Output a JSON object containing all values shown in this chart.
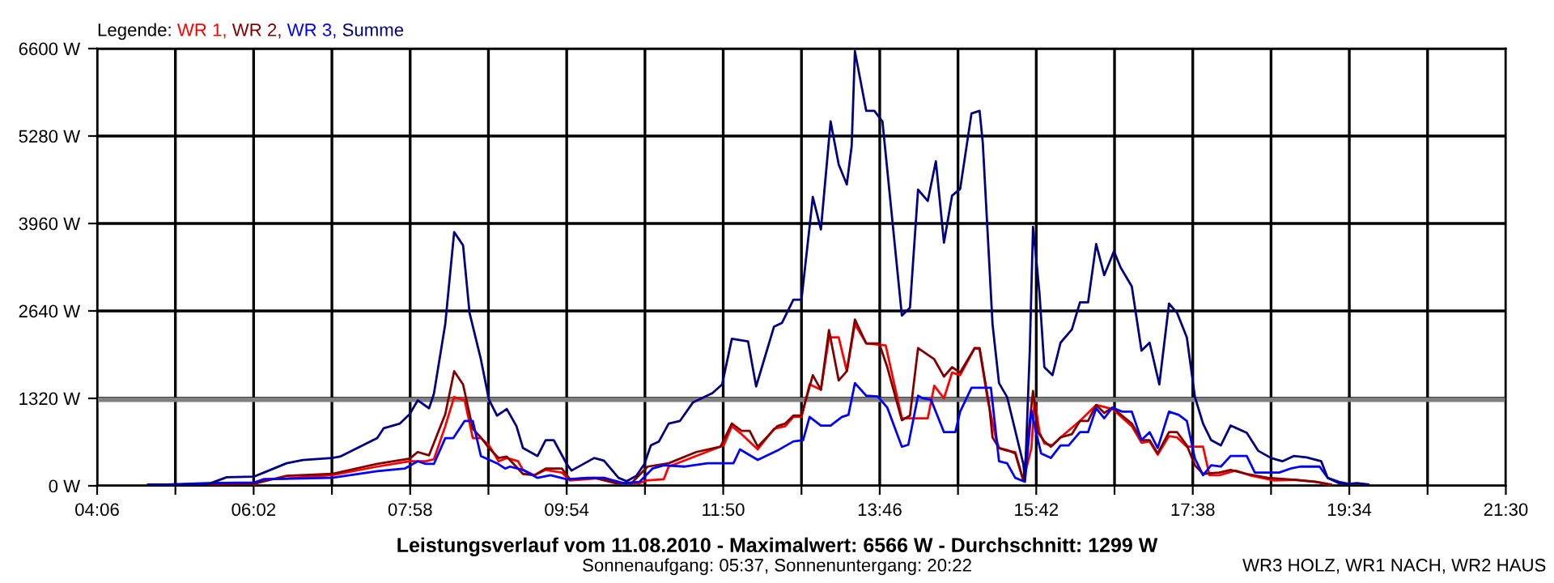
{
  "chart_data": {
    "type": "line",
    "title": "Leistungsverlauf vom 11.08.2010 - Maximalwert: 6566 W - Durchschnitt: 1299 W",
    "subtitle": "Sonnenaufgang: 05:37, Sonnenuntergang: 20:22",
    "legend_title": "Legende:",
    "annotations": [
      "WR3 HOLZ, WR1 NACH, WR2 HAUS"
    ],
    "legend": "top left",
    "grid": true,
    "marker": "none",
    "line_style": "solid",
    "xlim": [
      4.1,
      21.5
    ],
    "ylim": [
      0,
      6600
    ],
    "xticks": [
      {
        "value": 4.1,
        "label": "04:06"
      },
      {
        "value": 5.0667,
        "label": null
      },
      {
        "value": 6.0333,
        "label": "06:02"
      },
      {
        "value": 7.0,
        "label": null
      },
      {
        "value": 7.9667,
        "label": "07:58"
      },
      {
        "value": 8.9333,
        "label": null
      },
      {
        "value": 9.9,
        "label": "09:54"
      },
      {
        "value": 10.8667,
        "label": null
      },
      {
        "value": 11.8333,
        "label": "11:50"
      },
      {
        "value": 12.8,
        "label": null
      },
      {
        "value": 13.7667,
        "label": "13:46"
      },
      {
        "value": 14.7333,
        "label": null
      },
      {
        "value": 15.7,
        "label": "15:42"
      },
      {
        "value": 16.6667,
        "label": null
      },
      {
        "value": 17.6333,
        "label": "17:38"
      },
      {
        "value": 18.6,
        "label": null
      },
      {
        "value": 19.5667,
        "label": "19:34"
      },
      {
        "value": 20.5333,
        "label": null
      },
      {
        "value": 21.5,
        "label": "21:30"
      }
    ],
    "yticks": [
      {
        "value": 0,
        "label": "0 W"
      },
      {
        "value": 1320,
        "label": "1320 W"
      },
      {
        "value": 2640,
        "label": "2640 W"
      },
      {
        "value": 3960,
        "label": "3960 W"
      },
      {
        "value": 5280,
        "label": "5280 W"
      },
      {
        "value": 6600,
        "label": "6600 W"
      }
    ],
    "ref_lines": [
      {
        "axis": "y",
        "value": 1299,
        "label": null,
        "color": "#808080"
      }
    ],
    "series": [
      {
        "name": "WR 1,",
        "color": "#ff0000",
        "x": [
          6.04,
          6.16,
          6.44,
          6.64,
          7.0,
          7.56,
          7.96,
          8.16,
          8.26,
          8.4,
          8.51,
          8.64,
          8.74,
          8.84,
          8.94,
          9.06,
          9.16,
          9.3,
          9.36,
          9.5,
          9.64,
          9.84,
          9.94,
          10.36,
          10.54,
          10.8,
          10.88,
          11.1,
          11.16,
          11.84,
          11.94,
          12.06,
          12.26,
          12.46,
          12.6,
          12.7,
          12.8,
          12.9,
          13.04,
          13.14,
          13.26,
          13.36,
          13.46,
          13.6,
          13.84,
          14.04,
          14.36,
          14.44,
          14.56,
          14.66,
          14.76,
          14.94,
          15.0,
          15.1,
          15.2,
          15.24,
          15.34,
          15.44,
          15.54,
          15.64,
          15.68,
          15.74,
          15.8,
          15.9,
          16.0,
          16.24,
          16.44,
          16.64,
          16.88,
          17.0,
          17.1,
          17.2,
          17.34,
          17.44,
          17.56,
          17.76,
          17.84,
          17.96,
          18.16,
          18.36,
          18.64,
          18.9,
          19.16,
          19.34
        ],
        "values": [
          20,
          100,
          110,
          130,
          160,
          290,
          370,
          370,
          400,
          900,
          1340,
          1290,
          720,
          720,
          610,
          370,
          420,
          370,
          240,
          160,
          240,
          200,
          80,
          120,
          40,
          40,
          80,
          100,
          290,
          610,
          900,
          780,
          550,
          860,
          900,
          1040,
          1040,
          1530,
          1450,
          2240,
          2240,
          1730,
          2440,
          2150,
          2120,
          1020,
          1020,
          1510,
          1320,
          1710,
          1670,
          2080,
          2060,
          1300,
          730,
          570,
          530,
          510,
          80,
          570,
          1300,
          810,
          640,
          610,
          730,
          980,
          1220,
          1160,
          900,
          650,
          670,
          470,
          750,
          730,
          590,
          590,
          160,
          160,
          230,
          150,
          80,
          90,
          60,
          10
        ]
      },
      {
        "name": "WR 2,",
        "color": "#800000",
        "x": [
          5.46,
          6.04,
          6.44,
          7.0,
          7.56,
          7.96,
          8.06,
          8.2,
          8.4,
          8.51,
          8.62,
          8.74,
          8.84,
          8.94,
          9.06,
          9.16,
          9.36,
          9.5,
          9.64,
          9.84,
          9.94,
          10.24,
          10.5,
          10.7,
          10.9,
          11.16,
          11.5,
          11.8,
          11.94,
          12.06,
          12.16,
          12.26,
          12.5,
          12.6,
          12.7,
          12.8,
          12.94,
          13.04,
          13.14,
          13.26,
          13.36,
          13.46,
          13.6,
          13.76,
          13.86,
          14.04,
          14.14,
          14.24,
          14.44,
          14.56,
          14.66,
          14.76,
          14.94,
          15.0,
          15.12,
          15.16,
          15.24,
          15.34,
          15.44,
          15.54,
          15.66,
          15.72,
          15.8,
          15.88,
          16.0,
          16.14,
          16.24,
          16.34,
          16.44,
          16.54,
          16.64,
          16.76,
          16.88,
          17.0,
          17.1,
          17.2,
          17.34,
          17.44,
          17.56,
          17.66,
          17.76,
          17.96,
          18.1,
          18.3,
          18.56,
          18.9,
          19.16,
          19.34
        ],
        "values": [
          20,
          30,
          150,
          180,
          330,
          410,
          510,
          460,
          1080,
          1730,
          1530,
          860,
          730,
          570,
          420,
          440,
          180,
          160,
          260,
          260,
          100,
          120,
          40,
          40,
          290,
          340,
          510,
          590,
          940,
          830,
          830,
          590,
          900,
          940,
          1060,
          1060,
          1670,
          1450,
          2350,
          1590,
          1730,
          2510,
          2150,
          2150,
          1790,
          990,
          1060,
          2080,
          1910,
          1650,
          1790,
          1710,
          2080,
          2080,
          1200,
          730,
          570,
          540,
          490,
          80,
          1430,
          810,
          670,
          590,
          730,
          780,
          980,
          980,
          1220,
          1100,
          1180,
          1060,
          940,
          690,
          690,
          490,
          810,
          810,
          610,
          310,
          180,
          200,
          240,
          180,
          120,
          90,
          60,
          20
        ]
      },
      {
        "name": "WR 3,",
        "color": "#0000ff",
        "x": [
          4.73,
          5.46,
          6.04,
          6.16,
          7.0,
          7.56,
          7.9,
          8.06,
          8.16,
          8.26,
          8.4,
          8.5,
          8.64,
          8.74,
          8.84,
          9.04,
          9.14,
          9.2,
          9.36,
          9.54,
          9.7,
          9.9,
          10.16,
          10.36,
          10.6,
          10.8,
          10.96,
          11.1,
          11.36,
          11.64,
          11.96,
          12.04,
          12.26,
          12.5,
          12.7,
          12.82,
          12.9,
          13.04,
          13.16,
          13.3,
          13.38,
          13.46,
          13.6,
          13.74,
          13.86,
          14.04,
          14.12,
          14.24,
          14.3,
          14.4,
          14.56,
          14.7,
          14.76,
          14.9,
          15.1,
          15.14,
          15.24,
          15.34,
          15.44,
          15.56,
          15.64,
          15.68,
          15.76,
          15.88,
          16.0,
          16.1,
          16.24,
          16.34,
          16.44,
          16.54,
          16.64,
          16.76,
          16.88,
          17.0,
          17.1,
          17.2,
          17.34,
          17.46,
          17.56,
          17.66,
          17.76,
          17.86,
          17.98,
          18.1,
          18.3,
          18.4,
          18.56,
          18.7,
          18.84,
          18.96,
          19.2,
          19.3,
          19.44,
          19.56
        ],
        "values": [
          10,
          40,
          50,
          100,
          120,
          220,
          260,
          370,
          330,
          330,
          720,
          720,
          980,
          980,
          450,
          340,
          260,
          290,
          240,
          120,
          160,
          100,
          120,
          120,
          40,
          60,
          260,
          310,
          290,
          340,
          340,
          550,
          390,
          530,
          670,
          690,
          1040,
          910,
          910,
          1040,
          1070,
          1550,
          1360,
          1350,
          1180,
          590,
          620,
          1360,
          1320,
          1300,
          810,
          810,
          1120,
          1480,
          1480,
          1480,
          370,
          340,
          120,
          60,
          1140,
          900,
          490,
          420,
          610,
          610,
          810,
          810,
          1170,
          1020,
          1180,
          1120,
          1120,
          690,
          810,
          570,
          1120,
          1070,
          980,
          410,
          160,
          310,
          290,
          450,
          450,
          200,
          200,
          200,
          260,
          290,
          290,
          120,
          60,
          30
        ]
      },
      {
        "name": "Summe",
        "color": "#000080",
        "x": [
          4.73,
          5.46,
          5.7,
          6.04,
          6.16,
          6.44,
          6.64,
          7.0,
          7.1,
          7.56,
          7.64,
          7.84,
          7.96,
          8.06,
          8.2,
          8.26,
          8.4,
          8.51,
          8.62,
          8.7,
          8.84,
          8.94,
          9.04,
          9.16,
          9.28,
          9.36,
          9.54,
          9.64,
          9.74,
          9.9,
          9.96,
          10.24,
          10.36,
          10.54,
          10.64,
          10.76,
          10.86,
          10.94,
          11.04,
          11.16,
          11.3,
          11.46,
          11.6,
          11.7,
          11.82,
          11.94,
          12.14,
          12.24,
          12.46,
          12.56,
          12.7,
          12.8,
          12.9,
          12.94,
          13.04,
          13.16,
          13.26,
          13.36,
          13.42,
          13.46,
          13.6,
          13.7,
          13.8,
          14.04,
          14.14,
          14.24,
          14.36,
          14.46,
          14.56,
          14.66,
          14.76,
          14.9,
          15.0,
          15.04,
          15.16,
          15.24,
          15.34,
          15.54,
          15.56,
          15.62,
          15.66,
          15.7,
          15.74,
          15.8,
          15.9,
          16.0,
          16.14,
          16.24,
          16.34,
          16.44,
          16.54,
          16.66,
          16.74,
          16.88,
          17.0,
          17.1,
          17.22,
          17.34,
          17.44,
          17.56,
          17.66,
          17.76,
          17.86,
          17.98,
          18.1,
          18.3,
          18.44,
          18.6,
          18.74,
          18.88,
          19.04,
          19.22,
          19.3,
          19.44,
          19.56,
          19.66,
          19.8
        ],
        "values": [
          20,
          20,
          130,
          140,
          200,
          340,
          390,
          420,
          440,
          720,
          870,
          940,
          1080,
          1290,
          1170,
          1390,
          2440,
          3830,
          3630,
          2610,
          1910,
          1300,
          1060,
          1160,
          900,
          570,
          450,
          690,
          690,
          330,
          230,
          420,
          380,
          120,
          70,
          150,
          330,
          610,
          670,
          940,
          980,
          1260,
          1340,
          1400,
          1530,
          2220,
          2180,
          1500,
          2400,
          2460,
          2810,
          2810,
          3910,
          4360,
          3870,
          5500,
          4850,
          4550,
          5130,
          6560,
          5660,
          5660,
          5500,
          2570,
          2690,
          4470,
          4300,
          4900,
          3670,
          4380,
          4480,
          5620,
          5660,
          5170,
          2440,
          1550,
          1340,
          330,
          100,
          2040,
          3910,
          3420,
          2900,
          1790,
          1670,
          2160,
          2360,
          2770,
          2770,
          3650,
          3180,
          3540,
          3300,
          3010,
          2040,
          2160,
          1530,
          2750,
          2610,
          2240,
          1340,
          940,
          690,
          610,
          910,
          800,
          530,
          420,
          370,
          450,
          430,
          370,
          120,
          40,
          30,
          40,
          20
        ]
      }
    ]
  }
}
